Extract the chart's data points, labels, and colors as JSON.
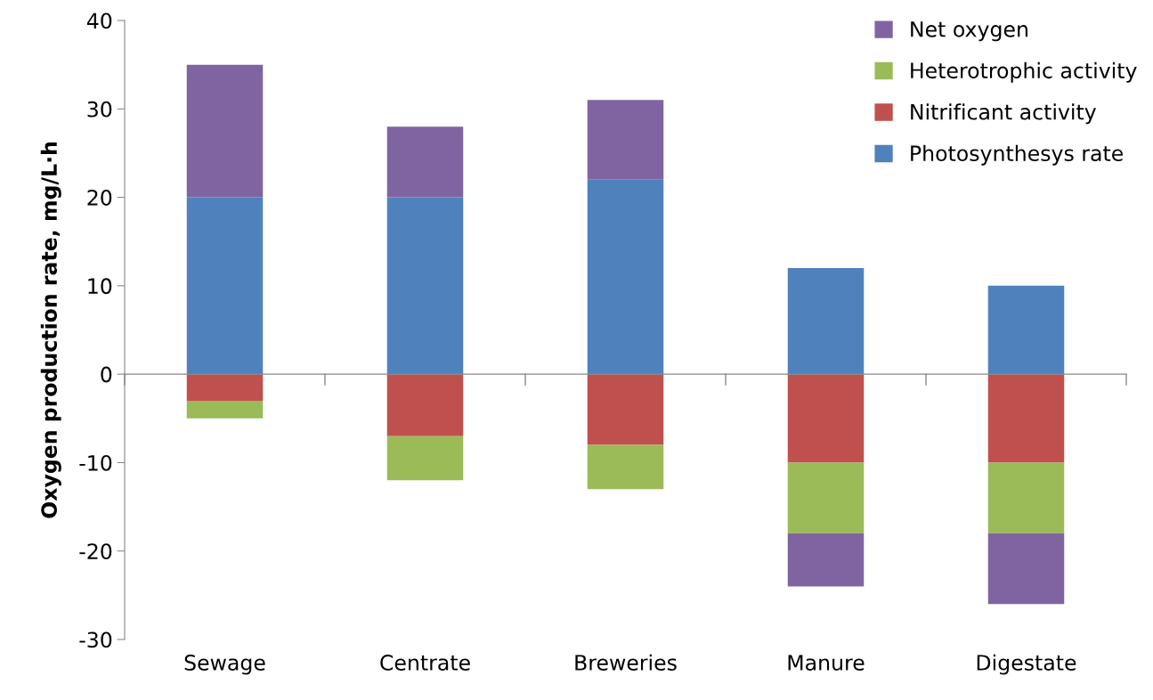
{
  "chart_data": {
    "type": "bar",
    "stacked": true,
    "ylabel": "Oxygen production rate, mg/L·h",
    "categories": [
      "Sewage",
      "Centrate",
      "Breweries",
      "Manure",
      "Digestate"
    ],
    "series": [
      {
        "name": "Photosynthesys rate",
        "color": "#4f81bd",
        "values": [
          20,
          20,
          22,
          12,
          10
        ]
      },
      {
        "name": "Nitrificant activity",
        "color": "#c0504d",
        "values": [
          -3,
          -7,
          -8,
          -10,
          -10
        ]
      },
      {
        "name": "Heterotrophic activity",
        "color": "#9bbb59",
        "values": [
          -2,
          -5,
          -5,
          -8,
          -8
        ]
      },
      {
        "name": "Net oxygen",
        "color": "#8064a2",
        "values": [
          15,
          8,
          9,
          -6,
          -8
        ]
      }
    ],
    "ylim": [
      -30,
      40
    ],
    "yticks": [
      -30,
      -20,
      -10,
      0,
      10,
      20,
      30,
      40
    ],
    "legend": "top right"
  }
}
